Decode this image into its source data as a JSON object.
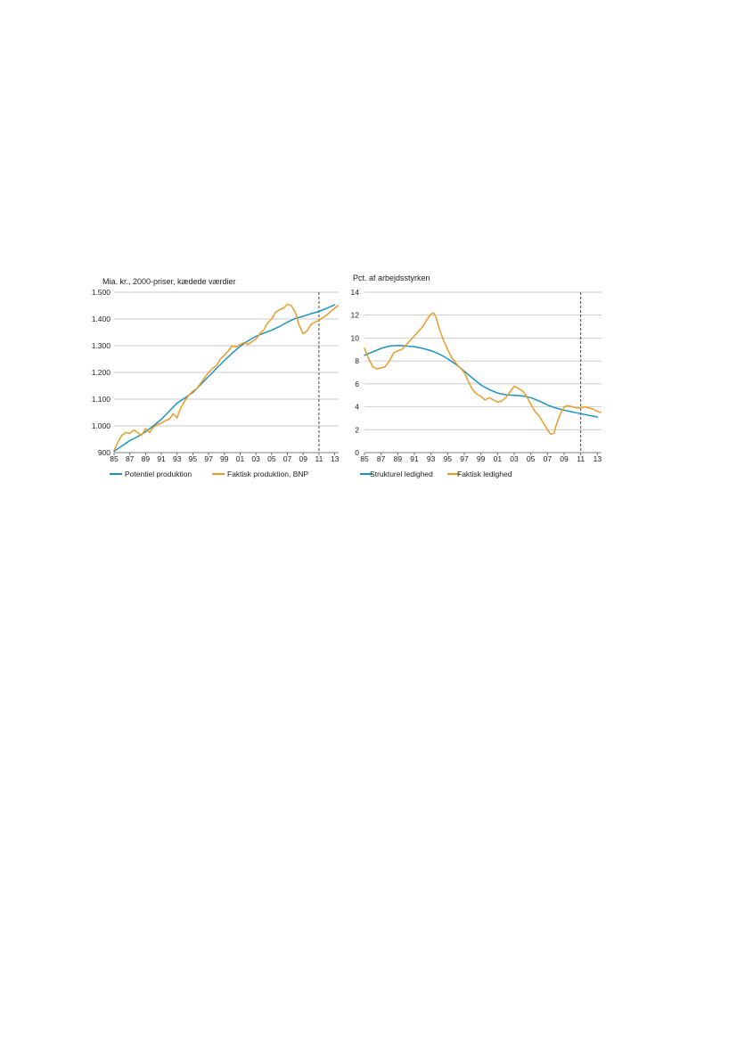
{
  "colors": {
    "blue": "#1a94c7",
    "orange": "#ef9a25"
  },
  "chart_data": [
    {
      "type": "line",
      "title": "",
      "ylabel": "Mia. kr., 2000-priser, kædede værdier",
      "xlabel": "",
      "ylim": [
        900,
        1500
      ],
      "xlim": [
        1985,
        2013.5
      ],
      "y_ticks": [
        "1.500",
        "1.400",
        "1.300",
        "1.200",
        "1.100",
        "1.000",
        "900"
      ],
      "y_tick_values": [
        1500,
        1400,
        1300,
        1200,
        1100,
        1000,
        900
      ],
      "x_ticks": [
        "85",
        "87",
        "89",
        "91",
        "93",
        "95",
        "97",
        "99",
        "01",
        "03",
        "05",
        "07",
        "09",
        "11",
        "13"
      ],
      "x_tick_values": [
        1985,
        1987,
        1989,
        1991,
        1993,
        1995,
        1997,
        1999,
        2001,
        2003,
        2005,
        2007,
        2009,
        2011,
        2013
      ],
      "vline": 2011,
      "grid": true,
      "legend_position": "bottom",
      "series": [
        {
          "name": "Potentiel produktion",
          "color": "#1a94c7",
          "points": [
            [
              1985,
              905
            ],
            [
              1986,
              925
            ],
            [
              1987,
              945
            ],
            [
              1988,
              960
            ],
            [
              1989,
              978
            ],
            [
              1990,
              1000
            ],
            [
              1991,
              1025
            ],
            [
              1992,
              1055
            ],
            [
              1993,
              1085
            ],
            [
              1994,
              1105
            ],
            [
              1995,
              1125
            ],
            [
              1996,
              1155
            ],
            [
              1997,
              1185
            ],
            [
              1998,
              1215
            ],
            [
              1999,
              1245
            ],
            [
              2000,
              1272
            ],
            [
              2001,
              1298
            ],
            [
              2002,
              1318
            ],
            [
              2003,
              1335
            ],
            [
              2004,
              1347
            ],
            [
              2005,
              1358
            ],
            [
              2006,
              1372
            ],
            [
              2007,
              1388
            ],
            [
              2008,
              1402
            ],
            [
              2009,
              1410
            ],
            [
              2010,
              1420
            ],
            [
              2011,
              1428
            ],
            [
              2012,
              1440
            ],
            [
              2013,
              1453
            ]
          ]
        },
        {
          "name": "Faktisk produktion, BNP",
          "color": "#ef9a25",
          "points": [
            [
              1985,
              908
            ],
            [
              1985.5,
              940
            ],
            [
              1986,
              965
            ],
            [
              1986.5,
              975
            ],
            [
              1987,
              972
            ],
            [
              1987.5,
              985
            ],
            [
              1988,
              975
            ],
            [
              1988.5,
              965
            ],
            [
              1989,
              990
            ],
            [
              1989.5,
              975
            ],
            [
              1990,
              995
            ],
            [
              1990.5,
              1005
            ],
            [
              1991,
              1010
            ],
            [
              1991.5,
              1020
            ],
            [
              1992,
              1025
            ],
            [
              1992.5,
              1045
            ],
            [
              1993,
              1030
            ],
            [
              1993.5,
              1070
            ],
            [
              1994,
              1095
            ],
            [
              1994.5,
              1115
            ],
            [
              1995,
              1130
            ],
            [
              1995.5,
              1140
            ],
            [
              1996,
              1160
            ],
            [
              1996.5,
              1180
            ],
            [
              1997,
              1200
            ],
            [
              1997.5,
              1215
            ],
            [
              1998,
              1225
            ],
            [
              1998.5,
              1250
            ],
            [
              1999,
              1265
            ],
            [
              1999.5,
              1280
            ],
            [
              2000,
              1300
            ],
            [
              2000.5,
              1295
            ],
            [
              2001,
              1305
            ],
            [
              2001.5,
              1312
            ],
            [
              2002,
              1305
            ],
            [
              2002.5,
              1315
            ],
            [
              2003,
              1325
            ],
            [
              2003.5,
              1345
            ],
            [
              2004,
              1360
            ],
            [
              2004.5,
              1385
            ],
            [
              2005,
              1400
            ],
            [
              2005.5,
              1425
            ],
            [
              2006,
              1435
            ],
            [
              2006.5,
              1440
            ],
            [
              2007,
              1455
            ],
            [
              2007.5,
              1450
            ],
            [
              2008,
              1425
            ],
            [
              2008.5,
              1375
            ],
            [
              2009,
              1345
            ],
            [
              2009.5,
              1355
            ],
            [
              2010,
              1380
            ],
            [
              2010.5,
              1388
            ],
            [
              2011,
              1395
            ],
            [
              2011.5,
              1405
            ],
            [
              2012,
              1415
            ],
            [
              2012.5,
              1428
            ],
            [
              2013,
              1440
            ],
            [
              2013.4,
              1450
            ]
          ]
        }
      ]
    },
    {
      "type": "line",
      "title": "",
      "ylabel": "Pct. af arbejdsstyrken",
      "xlabel": "",
      "ylim": [
        0,
        14
      ],
      "xlim": [
        1985,
        2013.5
      ],
      "y_ticks": [
        "14",
        "12",
        "10",
        "8",
        "6",
        "4",
        "2",
        "0"
      ],
      "y_tick_values": [
        14,
        12,
        10,
        8,
        6,
        4,
        2,
        0
      ],
      "x_ticks": [
        "85",
        "87",
        "89",
        "91",
        "93",
        "95",
        "97",
        "99",
        "01",
        "03",
        "05",
        "07",
        "09",
        "11",
        "13"
      ],
      "x_tick_values": [
        1985,
        1987,
        1989,
        1991,
        1993,
        1995,
        1997,
        1999,
        2001,
        2003,
        2005,
        2007,
        2009,
        2011,
        2013
      ],
      "vline": 2011,
      "grid": true,
      "legend_position": "bottom",
      "series": [
        {
          "name": "Strukturel ledighed",
          "color": "#1a94c7",
          "points": [
            [
              1985,
              8.5
            ],
            [
              1986,
              8.8
            ],
            [
              1987,
              9.1
            ],
            [
              1988,
              9.3
            ],
            [
              1989,
              9.35
            ],
            [
              1990,
              9.3
            ],
            [
              1991,
              9.25
            ],
            [
              1992,
              9.1
            ],
            [
              1993,
              8.9
            ],
            [
              1994,
              8.6
            ],
            [
              1995,
              8.2
            ],
            [
              1996,
              7.7
            ],
            [
              1997,
              7.1
            ],
            [
              1998,
              6.5
            ],
            [
              1999,
              5.9
            ],
            [
              2000,
              5.5
            ],
            [
              2001,
              5.2
            ],
            [
              2002,
              5.05
            ],
            [
              2003,
              5.0
            ],
            [
              2004,
              4.95
            ],
            [
              2005,
              4.8
            ],
            [
              2006,
              4.5
            ],
            [
              2007,
              4.15
            ],
            [
              2008,
              3.9
            ],
            [
              2009,
              3.7
            ],
            [
              2010,
              3.55
            ],
            [
              2011,
              3.4
            ],
            [
              2012,
              3.25
            ],
            [
              2013,
              3.1
            ]
          ]
        },
        {
          "name": "Faktisk ledighed",
          "color": "#ef9a25",
          "points": [
            [
              1985,
              9.1
            ],
            [
              1985.5,
              8.2
            ],
            [
              1986,
              7.5
            ],
            [
              1986.5,
              7.3
            ],
            [
              1987,
              7.4
            ],
            [
              1987.5,
              7.5
            ],
            [
              1988,
              8.0
            ],
            [
              1988.5,
              8.7
            ],
            [
              1989,
              8.9
            ],
            [
              1989.5,
              9.0
            ],
            [
              1990,
              9.4
            ],
            [
              1990.5,
              9.8
            ],
            [
              1991,
              10.2
            ],
            [
              1991.5,
              10.6
            ],
            [
              1992,
              11.0
            ],
            [
              1992.5,
              11.6
            ],
            [
              1993,
              12.1
            ],
            [
              1993.3,
              12.2
            ],
            [
              1993.6,
              11.8
            ],
            [
              1994,
              10.8
            ],
            [
              1994.5,
              9.8
            ],
            [
              1995,
              9.0
            ],
            [
              1995.5,
              8.3
            ],
            [
              1996,
              7.8
            ],
            [
              1996.5,
              7.4
            ],
            [
              1997,
              7.0
            ],
            [
              1997.5,
              6.2
            ],
            [
              1998,
              5.5
            ],
            [
              1998.5,
              5.1
            ],
            [
              1999,
              4.9
            ],
            [
              1999.5,
              4.6
            ],
            [
              2000,
              4.8
            ],
            [
              2000.5,
              4.6
            ],
            [
              2001,
              4.4
            ],
            [
              2001.5,
              4.5
            ],
            [
              2002,
              4.8
            ],
            [
              2002.5,
              5.3
            ],
            [
              2003,
              5.8
            ],
            [
              2003.5,
              5.6
            ],
            [
              2004,
              5.4
            ],
            [
              2004.5,
              4.9
            ],
            [
              2005,
              4.2
            ],
            [
              2005.5,
              3.6
            ],
            [
              2006,
              3.2
            ],
            [
              2006.5,
              2.6
            ],
            [
              2007,
              2.0
            ],
            [
              2007.4,
              1.6
            ],
            [
              2007.8,
              1.7
            ],
            [
              2008,
              2.3
            ],
            [
              2008.5,
              3.3
            ],
            [
              2009,
              4.0
            ],
            [
              2009.5,
              4.1
            ],
            [
              2010,
              4.0
            ],
            [
              2010.5,
              3.9
            ],
            [
              2011,
              3.9
            ],
            [
              2011.5,
              4.0
            ],
            [
              2012,
              3.9
            ],
            [
              2012.5,
              3.8
            ],
            [
              2013,
              3.6
            ],
            [
              2013.4,
              3.5
            ]
          ]
        }
      ]
    }
  ]
}
